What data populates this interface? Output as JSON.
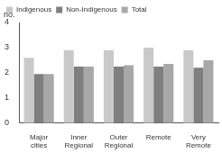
{
  "chart_data": {
    "type": "bar",
    "y_label": "no.",
    "categories": [
      "Major cities",
      "Inner Regional",
      "Outer Regional",
      "Remote",
      "Very Remote"
    ],
    "series": [
      {
        "name": "Indigenous",
        "color": "#c9c9c9",
        "values": [
          2.6,
          2.9,
          2.9,
          3.0,
          2.9
        ]
      },
      {
        "name": "Non-Indigenous",
        "color": "#7f7f7f",
        "values": [
          1.95,
          2.25,
          2.25,
          2.25,
          2.2
        ]
      },
      {
        "name": "Total",
        "color": "#a8a8a8",
        "values": [
          1.95,
          2.25,
          2.3,
          2.35,
          2.5
        ]
      }
    ],
    "ylim": [
      0,
      4
    ],
    "yticks": [
      0,
      1,
      2,
      3,
      4
    ],
    "grid": false,
    "legend": "top-left"
  }
}
